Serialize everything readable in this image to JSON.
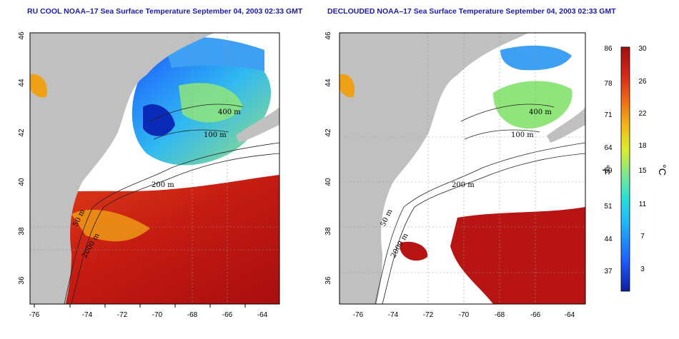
{
  "panels": [
    {
      "title": "RU COOL NOAA–17 Sea Surface Temperature September 04, 2003 02:33 GMT",
      "contour_labels": [
        "400 m",
        "100 m",
        "200 m",
        "50 m",
        "2000 m"
      ]
    },
    {
      "title": "DECLOUDED NOAA–17 Sea Surface Temperature September 04, 2003 02:33 GMT",
      "contour_labels": [
        "400 m",
        "100 m",
        "200 m",
        "50 m",
        "2000 m"
      ]
    }
  ],
  "x_ticks": [
    "-76",
    "-74",
    "-72",
    "-70",
    "-68",
    "-66",
    "-64"
  ],
  "y_ticks": [
    "46",
    "44",
    "42",
    "40",
    "38",
    "36"
  ],
  "colorbar": {
    "fahrenheit_ticks": [
      "86",
      "78",
      "71",
      "64",
      "59",
      "51",
      "44",
      "37"
    ],
    "celsius_ticks": [
      "30",
      "26",
      "22",
      "18",
      "15",
      "11",
      "7",
      "3"
    ],
    "fahrenheit_label": "°F",
    "celsius_label": "°C",
    "colors": [
      "#0a1f9e",
      "#1e5bff",
      "#1eb7ff",
      "#27e0d8",
      "#7fe88c",
      "#d9ef2a",
      "#f4b516",
      "#f06a14",
      "#d8281a",
      "#a10e0e"
    ]
  },
  "colors": {
    "land": "#c0c0c0",
    "ocean_warm": "#c41a12",
    "ocean_cool": "#52c8f0",
    "title": "#1a1aa8"
  }
}
